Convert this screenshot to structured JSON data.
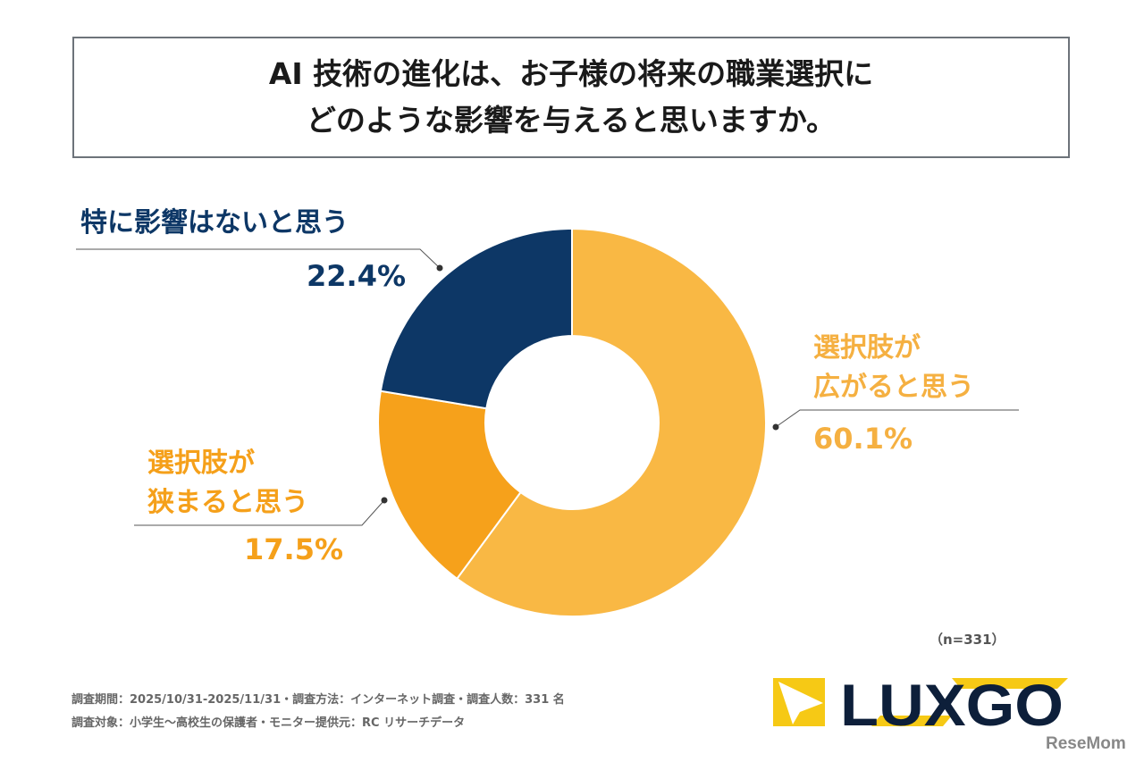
{
  "title": {
    "line1": "AI 技術の進化は、お子様の将来の職業選択に",
    "line2": "どのような影響を与えると思いますか。"
  },
  "chart_data": {
    "type": "pie",
    "donut": true,
    "start": "top, clockwise",
    "slices": [
      {
        "label_line1": "選択肢が",
        "label_line2": "広がると思う",
        "value": 60.1,
        "display": "60.1%",
        "color": "#F9B844",
        "text_color": "#F5B041"
      },
      {
        "label_line1": "選択肢が",
        "label_line2": "狭まると思う",
        "value": 17.5,
        "display": "17.5%",
        "color": "#F6A11B",
        "text_color": "#F5A01A"
      },
      {
        "label_line1": "特に影響はないと思う",
        "label_line2": "",
        "value": 22.4,
        "display": "22.4%",
        "color": "#0D3766",
        "text_color": "#0D3766"
      }
    ]
  },
  "sample": "（n=331）",
  "footer": {
    "line1": "調査期間：2025/10/31-2025/11/31・調査方法：インターネット調査・調査人数：331 名",
    "line2": "調査対象：小学生〜高校生の保護者・モニター提供元：RC リサーチデータ"
  },
  "logo": {
    "text": "LUXGO",
    "navy": "#0D1F3A",
    "yellow": "#F6C915"
  },
  "watermark": "ReseMom"
}
